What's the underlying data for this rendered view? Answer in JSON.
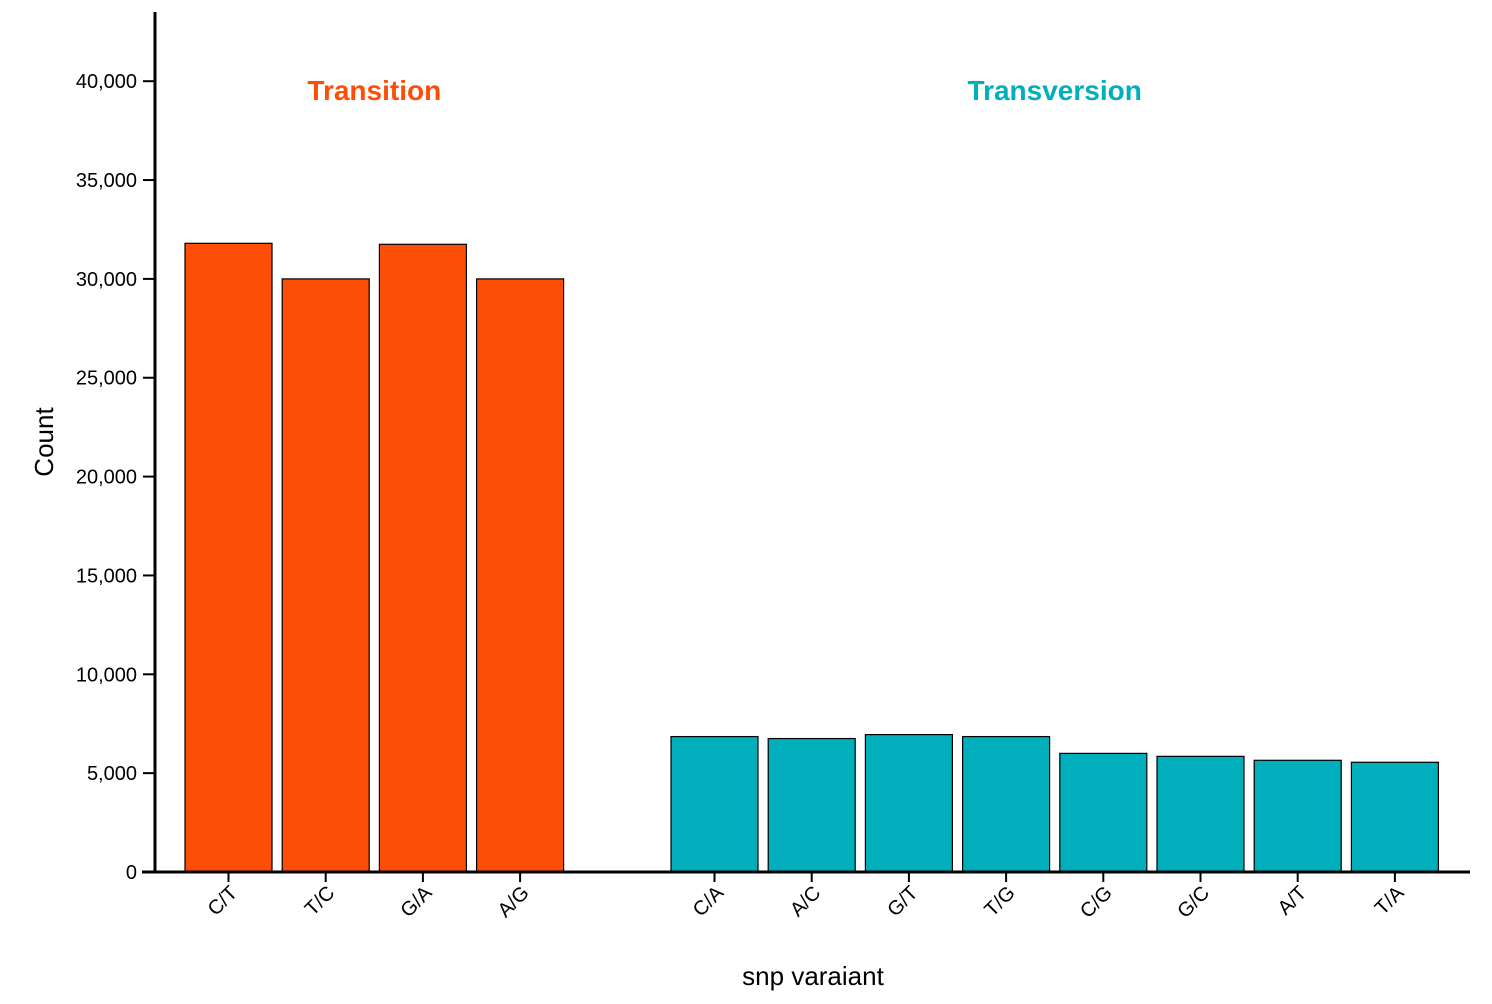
{
  "chart_data": {
    "type": "bar",
    "title": "",
    "xlabel": "snp varaiant",
    "ylabel": "Count",
    "ylim": [
      0,
      43500
    ],
    "yticks": [
      0,
      5000,
      10000,
      15000,
      20000,
      25000,
      30000,
      35000,
      40000
    ],
    "ytick_labels": [
      "0",
      "5,000",
      "10,000",
      "15,000",
      "20,000",
      "25,000",
      "30,000",
      "35,000",
      "40,000"
    ],
    "grid": false,
    "legend": "none",
    "groups": [
      {
        "name": "Transition",
        "color": "#FC4E07",
        "categories": [
          "C/T",
          "T/C",
          "G/A",
          "A/G"
        ],
        "values": [
          31800,
          30000,
          31750,
          30000
        ]
      },
      {
        "name": "Transversion",
        "color": "#00AFBB",
        "categories": [
          "C/A",
          "A/C",
          "G/T",
          "T/G",
          "C/G",
          "G/C",
          "A/T",
          "T/A"
        ],
        "values": [
          6850,
          6750,
          6950,
          6850,
          6000,
          5850,
          5650,
          5550
        ]
      }
    ]
  }
}
